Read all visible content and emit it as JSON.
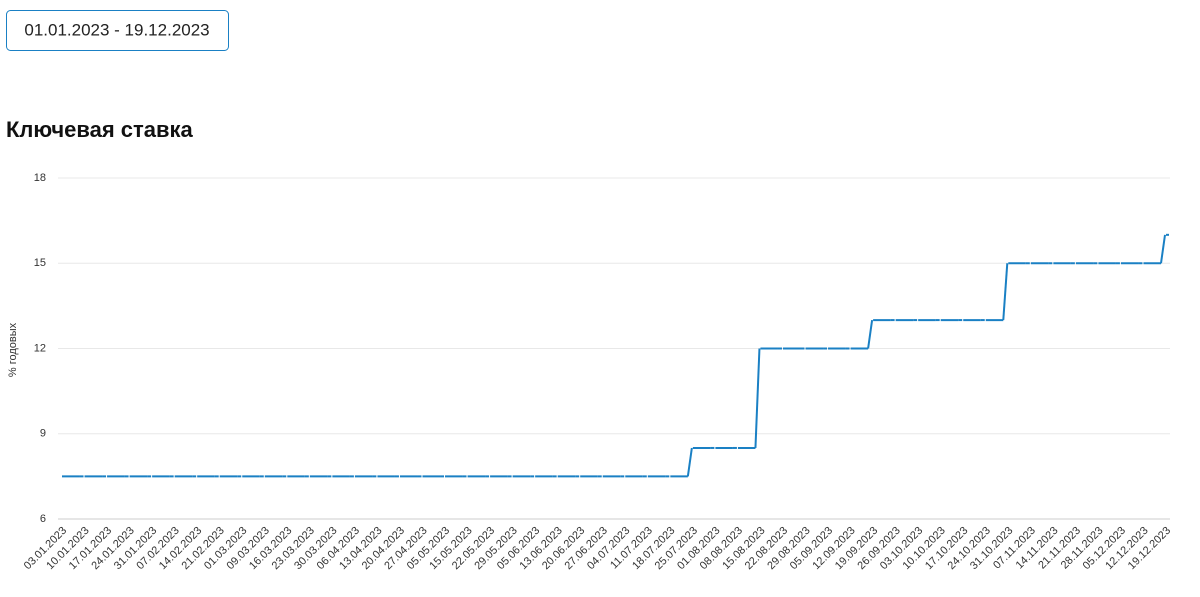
{
  "date_range": "01.01.2023 - 19.12.2023",
  "chart_data": {
    "type": "line",
    "step": true,
    "title": "Ключевая ставка",
    "y_label": "% годовых",
    "categories": [
      "03.01.2023",
      "10.01.2023",
      "17.01.2023",
      "24.01.2023",
      "31.01.2023",
      "07.02.2023",
      "14.02.2023",
      "21.02.2023",
      "01.03.2023",
      "09.03.2023",
      "16.03.2023",
      "23.03.2023",
      "30.03.2023",
      "06.04.2023",
      "13.04.2023",
      "20.04.2023",
      "27.04.2023",
      "05.05.2023",
      "15.05.2023",
      "22.05.2023",
      "29.05.2023",
      "05.06.2023",
      "13.06.2023",
      "20.06.2023",
      "27.06.2023",
      "04.07.2023",
      "11.07.2023",
      "18.07.2023",
      "25.07.2023",
      "01.08.2023",
      "08.08.2023",
      "15.08.2023",
      "22.08.2023",
      "29.08.2023",
      "05.09.2023",
      "12.09.2023",
      "19.09.2023",
      "26.09.2023",
      "03.10.2023",
      "10.10.2023",
      "17.10.2023",
      "24.10.2023",
      "31.10.2023",
      "07.11.2023",
      "14.11.2023",
      "21.11.2023",
      "28.11.2023",
      "05.12.2023",
      "12.12.2023",
      "19.12.2023"
    ],
    "values": [
      7.5,
      7.5,
      7.5,
      7.5,
      7.5,
      7.5,
      7.5,
      7.5,
      7.5,
      7.5,
      7.5,
      7.5,
      7.5,
      7.5,
      7.5,
      7.5,
      7.5,
      7.5,
      7.5,
      7.5,
      7.5,
      7.5,
      7.5,
      7.5,
      7.5,
      7.5,
      7.5,
      7.5,
      8.5,
      8.5,
      8.5,
      12,
      12,
      12,
      12,
      12,
      13,
      13,
      13,
      13,
      13,
      13,
      15,
      15,
      15,
      15,
      15,
      15,
      15,
      16
    ],
    "color": "#1a80c4",
    "ylim": [
      6,
      18
    ],
    "yticks": [
      6,
      9,
      12,
      15,
      18
    ],
    "grid": true
  }
}
